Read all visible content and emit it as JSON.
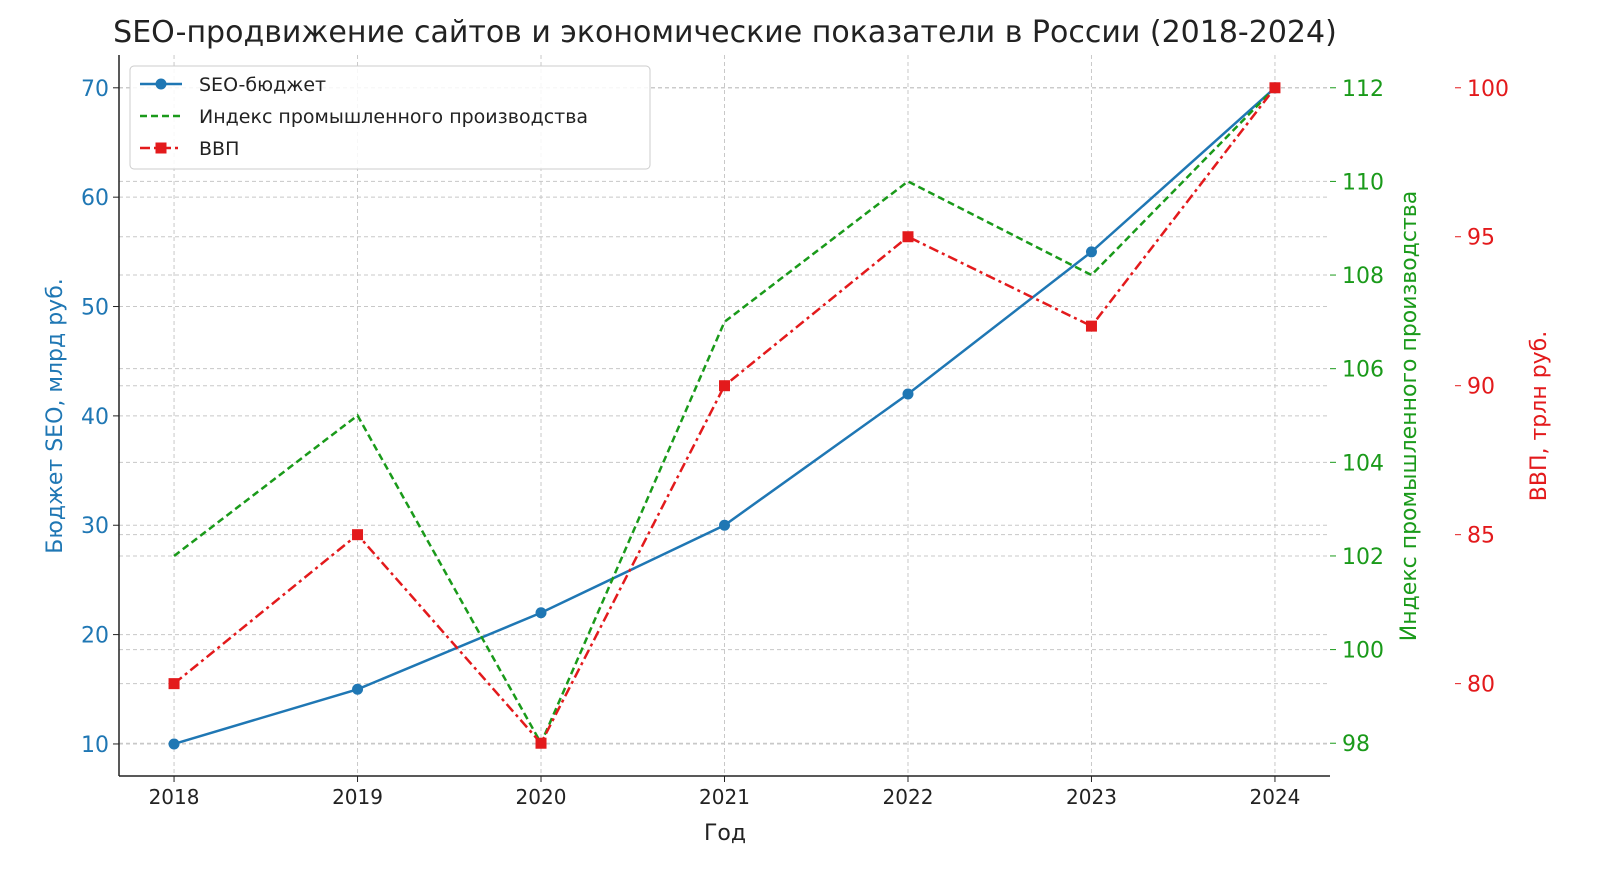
{
  "chart_data": {
    "type": "line",
    "title": "SEO-продвижение сайтов и экономические показатели в России (2018-2024)",
    "xlabel": "Год",
    "x": [
      2018,
      2019,
      2020,
      2021,
      2022,
      2023,
      2024
    ],
    "xlim": [
      2017.7,
      2024.3
    ],
    "grid": true,
    "legend_position": "top-left",
    "axes": [
      {
        "id": "left",
        "label": "Бюджет SEO, млрд руб.",
        "color": "#1f77b4",
        "ylim": [
          7.07,
          73.0
        ],
        "ticks": [
          10,
          20,
          30,
          40,
          50,
          60,
          70
        ]
      },
      {
        "id": "right1",
        "label": "Индекс промышленного производства",
        "color": "#1a9a1a",
        "ylim": [
          97.3,
          112.7
        ],
        "ticks": [
          98,
          100,
          102,
          104,
          106,
          108,
          110,
          112
        ]
      },
      {
        "id": "right2",
        "label": "ВВП, трлн руб.",
        "color": "#e31a1c",
        "ylim": [
          76.9,
          101.1
        ],
        "ticks": [
          80,
          85,
          90,
          95,
          100
        ]
      }
    ],
    "series": [
      {
        "name": "SEO-бюджет",
        "axis": "left",
        "color": "#1f77b4",
        "style": "solid",
        "marker": "circle",
        "values": [
          10,
          15,
          22,
          30,
          42,
          55,
          70
        ]
      },
      {
        "name": "Индекс промышленного производства",
        "axis": "right1",
        "color": "#1a9a1a",
        "style": "dashed",
        "marker": "none",
        "values": [
          102,
          105,
          98,
          107,
          110,
          108,
          112
        ]
      },
      {
        "name": "ВВП",
        "axis": "right2",
        "color": "#e31a1c",
        "style": "dashdot",
        "marker": "square",
        "values": [
          80,
          85,
          78,
          90,
          95,
          92,
          100
        ]
      }
    ]
  }
}
